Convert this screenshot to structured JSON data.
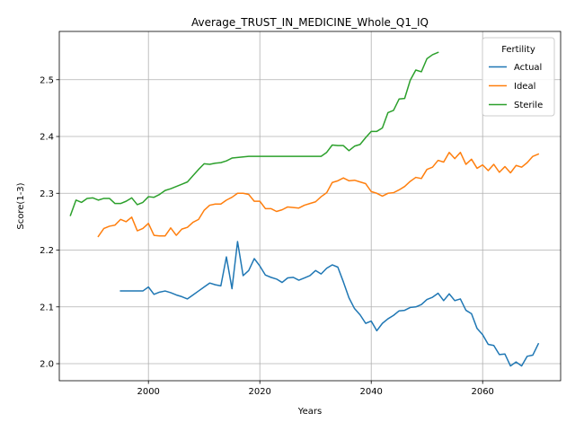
{
  "chart_data": {
    "type": "line",
    "title": "Average_TRUST_IN_MEDICINE_Whole_Q1_IQ",
    "xlabel": "Years",
    "ylabel": "Score(1-3)",
    "xlim": [
      1984,
      2074
    ],
    "ylim": [
      1.97,
      2.585
    ],
    "xticks": [
      2000,
      2020,
      2040,
      2060
    ],
    "yticks": [
      2.0,
      2.1,
      2.2,
      2.3,
      2.4,
      2.5
    ],
    "grid": true,
    "legend": {
      "title": "Fertility",
      "position": "upper-right"
    },
    "series": [
      {
        "name": "Actual",
        "color": "#1f77b4",
        "x": [
          1995,
          1996,
          1997,
          1998,
          1999,
          2000,
          2001,
          2002,
          2003,
          2004,
          2005,
          2006,
          2007,
          2008,
          2009,
          2010,
          2011,
          2012,
          2013,
          2014,
          2015,
          2016,
          2017,
          2018,
          2019,
          2020,
          2021,
          2022,
          2023,
          2024,
          2025,
          2026,
          2027,
          2028,
          2029,
          2030,
          2031,
          2032,
          2033,
          2034,
          2035,
          2036,
          2037,
          2038,
          2039,
          2040,
          2041,
          2042,
          2043,
          2044,
          2045,
          2046,
          2047,
          2048,
          2049,
          2050,
          2051,
          2052,
          2053,
          2054,
          2055,
          2056,
          2057,
          2058,
          2059,
          2060,
          2061,
          2062,
          2063,
          2064,
          2065,
          2066,
          2067,
          2068,
          2069,
          2070
        ],
        "y": [
          2.128,
          2.128,
          2.128,
          2.128,
          2.128,
          2.135,
          2.122,
          2.126,
          2.128,
          2.125,
          2.121,
          2.118,
          2.114,
          2.121,
          2.128,
          2.135,
          2.142,
          2.139,
          2.137,
          2.188,
          2.132,
          2.215,
          2.155,
          2.164,
          2.185,
          2.172,
          2.156,
          2.152,
          2.149,
          2.143,
          2.151,
          2.152,
          2.147,
          2.151,
          2.155,
          2.164,
          2.158,
          2.168,
          2.174,
          2.17,
          2.144,
          2.116,
          2.097,
          2.086,
          2.071,
          2.075,
          2.058,
          2.071,
          2.079,
          2.085,
          2.093,
          2.094,
          2.099,
          2.1,
          2.104,
          2.113,
          2.117,
          2.124,
          2.111,
          2.123,
          2.111,
          2.114,
          2.094,
          2.088,
          2.062,
          2.051,
          2.034,
          2.032,
          2.016,
          2.017,
          1.996,
          2.003,
          1.996,
          2.013,
          2.015,
          2.035
        ]
      },
      {
        "name": "Ideal",
        "color": "#ff7f0e",
        "x": [
          1991,
          1992,
          1993,
          1994,
          1995,
          1996,
          1997,
          1998,
          1999,
          2000,
          2001,
          2002,
          2003,
          2004,
          2005,
          2006,
          2007,
          2008,
          2009,
          2010,
          2011,
          2012,
          2013,
          2014,
          2015,
          2016,
          2017,
          2018,
          2019,
          2020,
          2021,
          2022,
          2023,
          2024,
          2025,
          2026,
          2027,
          2028,
          2029,
          2030,
          2031,
          2032,
          2033,
          2034,
          2035,
          2036,
          2037,
          2038,
          2039,
          2040,
          2041,
          2042,
          2043,
          2044,
          2045,
          2046,
          2047,
          2048,
          2049,
          2050,
          2051,
          2052,
          2053,
          2054,
          2055,
          2056,
          2057,
          2058,
          2059,
          2060,
          2061,
          2062,
          2063,
          2064,
          2065,
          2066,
          2067,
          2068,
          2069,
          2070
        ],
        "y": [
          2.224,
          2.238,
          2.242,
          2.244,
          2.254,
          2.25,
          2.258,
          2.234,
          2.238,
          2.247,
          2.226,
          2.225,
          2.225,
          2.239,
          2.226,
          2.237,
          2.24,
          2.249,
          2.254,
          2.27,
          2.279,
          2.281,
          2.281,
          2.288,
          2.293,
          2.3,
          2.3,
          2.298,
          2.286,
          2.286,
          2.273,
          2.273,
          2.268,
          2.271,
          2.276,
          2.275,
          2.274,
          2.279,
          2.282,
          2.285,
          2.294,
          2.301,
          2.319,
          2.322,
          2.327,
          2.322,
          2.323,
          2.32,
          2.317,
          2.303,
          2.3,
          2.295,
          2.3,
          2.301,
          2.306,
          2.312,
          2.321,
          2.328,
          2.326,
          2.342,
          2.346,
          2.358,
          2.355,
          2.372,
          2.361,
          2.372,
          2.351,
          2.36,
          2.344,
          2.35,
          2.34,
          2.351,
          2.337,
          2.347,
          2.336,
          2.349,
          2.346,
          2.354,
          2.365,
          2.369
        ]
      },
      {
        "name": "Sterile",
        "color": "#2ca02c",
        "x": [
          1986,
          1987,
          1988,
          1989,
          1990,
          1991,
          1992,
          1993,
          1994,
          1995,
          1996,
          1997,
          1998,
          1999,
          2000,
          2001,
          2002,
          2003,
          2004,
          2005,
          2006,
          2007,
          2008,
          2009,
          2010,
          2011,
          2012,
          2013,
          2014,
          2015,
          2016,
          2017,
          2018,
          2019,
          2020,
          2021,
          2022,
          2023,
          2024,
          2025,
          2026,
          2027,
          2028,
          2029,
          2030,
          2031,
          2032,
          2033,
          2034,
          2035,
          2036,
          2037,
          2038,
          2039,
          2040,
          2041,
          2042,
          2043,
          2044,
          2045,
          2046,
          2047,
          2048,
          2049,
          2050,
          2051,
          2052
        ],
        "y": [
          2.261,
          2.288,
          2.284,
          2.291,
          2.292,
          2.288,
          2.291,
          2.291,
          2.282,
          2.282,
          2.286,
          2.292,
          2.28,
          2.284,
          2.294,
          2.293,
          2.298,
          2.305,
          2.308,
          2.312,
          2.316,
          2.32,
          2.331,
          2.342,
          2.352,
          2.351,
          2.353,
          2.354,
          2.357,
          2.362,
          2.363,
          2.364,
          2.365,
          2.365,
          2.365,
          2.365,
          2.365,
          2.365,
          2.365,
          2.365,
          2.365,
          2.365,
          2.365,
          2.365,
          2.365,
          2.365,
          2.372,
          2.385,
          2.384,
          2.384,
          2.375,
          2.383,
          2.386,
          2.398,
          2.409,
          2.409,
          2.415,
          2.442,
          2.446,
          2.466,
          2.467,
          2.499,
          2.517,
          2.514,
          2.537,
          2.544,
          2.548
        ]
      }
    ]
  }
}
